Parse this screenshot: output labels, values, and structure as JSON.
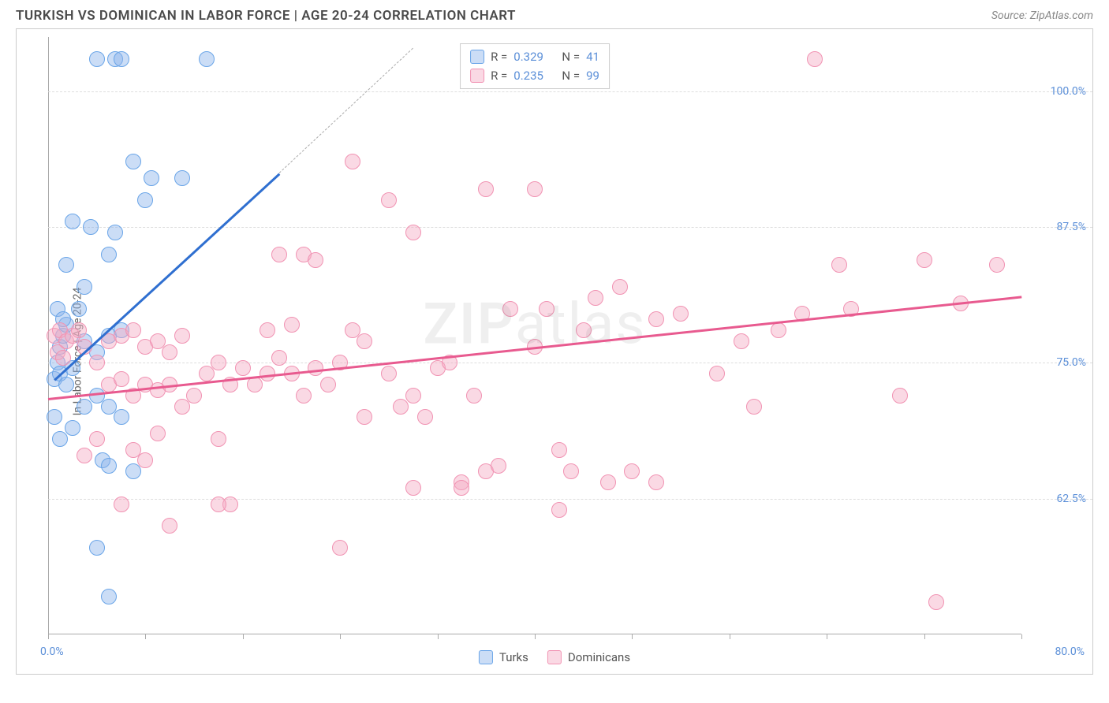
{
  "header": {
    "title": "TURKISH VS DOMINICAN IN LABOR FORCE | AGE 20-24 CORRELATION CHART",
    "source": "Source: ZipAtlas.com"
  },
  "chart": {
    "type": "scatter",
    "y_axis_label": "In Labor Force | Age 20-24",
    "x_range": [
      0,
      80
    ],
    "y_range": [
      50,
      105
    ],
    "x_label_min": "0.0%",
    "x_label_max": "80.0%",
    "x_ticks": [
      0,
      8,
      16,
      24,
      32,
      40,
      48,
      56,
      64,
      72,
      80
    ],
    "y_gridlines": [
      {
        "value": 62.5,
        "label": "62.5%"
      },
      {
        "value": 75.0,
        "label": "75.0%"
      },
      {
        "value": 87.5,
        "label": "87.5%"
      },
      {
        "value": 100.0,
        "label": "100.0%"
      }
    ],
    "background_color": "#ffffff",
    "grid_color": "#dddddd",
    "axis_label_color": "#5b8fd8",
    "point_radius": 10,
    "point_opacity": 0.55,
    "series": [
      {
        "name": "Turks",
        "color_stroke": "#6aa5e8",
        "color_fill": "rgba(140,180,235,0.45)",
        "r": "0.329",
        "n": "41",
        "trend": {
          "x1": 0.5,
          "y1": 73.5,
          "x2": 19,
          "y2": 92.5,
          "color": "#2f6fd0",
          "width": 2.5,
          "dash_ext_x": 30,
          "dash_ext_y": 104
        },
        "points": [
          [
            0.5,
            73.5
          ],
          [
            0.8,
            75
          ],
          [
            1,
            76.5
          ],
          [
            1.2,
            77.5
          ],
          [
            1.5,
            78.5
          ],
          [
            1,
            74
          ],
          [
            1.5,
            73
          ],
          [
            2,
            74.5
          ],
          [
            0.5,
            70
          ],
          [
            1,
            68
          ],
          [
            2,
            69
          ],
          [
            3,
            71
          ],
          [
            2.5,
            80
          ],
          [
            3,
            82
          ],
          [
            3.5,
            87.5
          ],
          [
            5,
            85
          ],
          [
            5.5,
            87
          ],
          [
            4,
            103
          ],
          [
            5.5,
            103
          ],
          [
            6,
            103
          ],
          [
            13,
            103
          ],
          [
            3,
            77
          ],
          [
            4,
            76
          ],
          [
            5,
            77.5
          ],
          [
            6,
            78
          ],
          [
            4,
            72
          ],
          [
            5,
            71
          ],
          [
            6,
            70
          ],
          [
            4.5,
            66
          ],
          [
            5,
            65.5
          ],
          [
            7,
            65
          ],
          [
            4,
            58
          ],
          [
            5,
            53.5
          ],
          [
            8,
            90
          ],
          [
            8.5,
            92
          ],
          [
            11,
            92
          ],
          [
            7,
            93.5
          ],
          [
            2,
            88
          ],
          [
            1.5,
            84
          ],
          [
            0.8,
            80
          ],
          [
            1.2,
            79
          ]
        ]
      },
      {
        "name": "Dominicans",
        "color_stroke": "#f193b3",
        "color_fill": "rgba(245,170,195,0.45)",
        "r": "0.235",
        "n": "99",
        "trend": {
          "x1": 0,
          "y1": 71.8,
          "x2": 80,
          "y2": 81.2,
          "color": "#e85a8f",
          "width": 2.5
        },
        "points": [
          [
            0.5,
            77.5
          ],
          [
            1,
            78
          ],
          [
            1.5,
            77
          ],
          [
            2,
            77.5
          ],
          [
            2.5,
            78
          ],
          [
            3,
            76.5
          ],
          [
            0.8,
            76
          ],
          [
            1.2,
            75.5
          ],
          [
            5,
            77
          ],
          [
            6,
            77.5
          ],
          [
            7,
            78
          ],
          [
            8,
            76.5
          ],
          [
            9,
            77
          ],
          [
            10,
            76
          ],
          [
            11,
            77.5
          ],
          [
            4,
            75
          ],
          [
            5,
            73
          ],
          [
            6,
            73.5
          ],
          [
            7,
            72
          ],
          [
            8,
            73
          ],
          [
            9,
            72.5
          ],
          [
            10,
            73
          ],
          [
            11,
            71
          ],
          [
            12,
            72
          ],
          [
            13,
            74
          ],
          [
            14,
            75
          ],
          [
            15,
            73
          ],
          [
            16,
            74.5
          ],
          [
            17,
            73
          ],
          [
            18,
            74
          ],
          [
            19,
            75.5
          ],
          [
            20,
            74
          ],
          [
            21,
            72
          ],
          [
            22,
            74.5
          ],
          [
            23,
            73
          ],
          [
            24,
            75
          ],
          [
            25,
            78
          ],
          [
            26,
            77
          ],
          [
            21,
            85
          ],
          [
            22,
            84.5
          ],
          [
            19,
            85
          ],
          [
            18,
            78
          ],
          [
            20,
            78.5
          ],
          [
            28,
            74
          ],
          [
            29,
            71
          ],
          [
            30,
            72
          ],
          [
            31,
            70
          ],
          [
            32,
            74.5
          ],
          [
            33,
            75
          ],
          [
            35,
            72
          ],
          [
            36,
            65
          ],
          [
            37,
            65.5
          ],
          [
            34,
            64
          ],
          [
            25,
            93.5
          ],
          [
            28,
            90
          ],
          [
            30,
            87
          ],
          [
            14,
            68
          ],
          [
            15,
            62
          ],
          [
            10,
            60
          ],
          [
            7,
            67
          ],
          [
            8,
            66
          ],
          [
            9,
            68.5
          ],
          [
            24,
            58
          ],
          [
            26,
            70
          ],
          [
            40,
            76.5
          ],
          [
            41,
            80
          ],
          [
            42,
            67
          ],
          [
            43,
            65
          ],
          [
            44,
            78
          ],
          [
            45,
            81
          ],
          [
            46,
            64
          ],
          [
            47,
            82
          ],
          [
            48,
            65
          ],
          [
            50,
            79
          ],
          [
            52,
            79.5
          ],
          [
            55,
            74
          ],
          [
            57,
            77
          ],
          [
            58,
            71
          ],
          [
            60,
            78
          ],
          [
            62,
            79.5
          ],
          [
            65,
            84
          ],
          [
            66,
            80
          ],
          [
            70,
            72
          ],
          [
            72,
            84.5
          ],
          [
            75,
            80.5
          ],
          [
            78,
            84
          ],
          [
            63,
            103
          ],
          [
            42,
            61.5
          ],
          [
            36,
            91
          ],
          [
            14,
            62
          ],
          [
            6,
            62
          ],
          [
            4,
            68
          ],
          [
            3,
            66.5
          ],
          [
            38,
            80
          ],
          [
            40,
            91
          ],
          [
            50,
            64
          ],
          [
            30,
            63.5
          ],
          [
            34,
            63.5
          ],
          [
            73,
            53
          ]
        ]
      }
    ],
    "legend_box": {
      "rows": [
        {
          "swatch_fill": "rgba(140,180,235,0.45)",
          "swatch_stroke": "#6aa5e8",
          "r_label": "R =",
          "r_val": "0.329",
          "n_label": "N =",
          "n_val": "41"
        },
        {
          "swatch_fill": "rgba(245,170,195,0.45)",
          "swatch_stroke": "#f193b3",
          "r_label": "R =",
          "r_val": "0.235",
          "n_label": "N =",
          "n_val": "99"
        }
      ]
    },
    "bottom_legend": [
      {
        "swatch_fill": "rgba(140,180,235,0.45)",
        "swatch_stroke": "#6aa5e8",
        "label": "Turks"
      },
      {
        "swatch_fill": "rgba(245,170,195,0.45)",
        "swatch_stroke": "#f193b3",
        "label": "Dominicans"
      }
    ],
    "watermark": {
      "bold": "ZIP",
      "rest": "atlas"
    }
  }
}
